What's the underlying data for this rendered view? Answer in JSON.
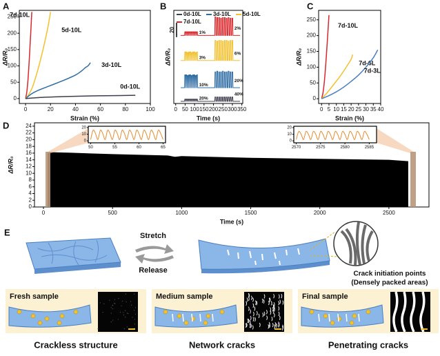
{
  "chart_data": [
    {
      "type": "line",
      "label": "A",
      "xlabel": "Strain (%)",
      "ylabel": "ΔR/R₀",
      "xlim": [
        -5,
        100
      ],
      "ylim": [
        -15,
        270
      ],
      "xticks": [
        0,
        20,
        40,
        60,
        80,
        100
      ],
      "yticks": [
        0,
        50,
        100,
        150,
        200,
        250
      ],
      "series": [
        {
          "name": "7d-10L",
          "color": "#d9262a",
          "x": [
            0,
            1,
            2,
            3,
            4,
            5
          ],
          "values": [
            0,
            20,
            60,
            120,
            190,
            265
          ]
        },
        {
          "name": "5d-10L",
          "color": "#f2c12e",
          "x": [
            0,
            3,
            6,
            10,
            14,
            18,
            20
          ],
          "values": [
            0,
            15,
            40,
            90,
            150,
            220,
            265
          ]
        },
        {
          "name": "3d-10L",
          "color": "#2e6da4",
          "x": [
            0,
            5,
            10,
            20,
            30,
            40,
            45,
            48,
            50,
            52
          ],
          "values": [
            0,
            15,
            25,
            40,
            55,
            72,
            85,
            95,
            100,
            110
          ]
        },
        {
          "name": "0d-10L",
          "color": "#3d3d4d",
          "x": [
            0,
            10,
            30,
            50,
            70,
            88
          ],
          "values": [
            0,
            3,
            6,
            8,
            9,
            10
          ]
        }
      ]
    },
    {
      "type": "pulse",
      "label": "B",
      "xlabel": "Time (s)",
      "ylabel": "ΔR/R₀",
      "xlim": [
        -10,
        355
      ],
      "ylim": [
        0,
        130
      ],
      "xticks": [
        0,
        50,
        100,
        150,
        200,
        250,
        300,
        350
      ],
      "scale_bar": 20,
      "x": [
        50,
        57,
        64,
        71,
        78,
        85,
        92,
        99,
        106,
        113,
        210,
        220,
        230,
        240,
        250,
        260,
        270,
        280,
        290,
        300
      ],
      "series": [
        {
          "name": "0d-10L",
          "color": "#3d3d4d",
          "strain_labels": [
            "20%",
            "40%"
          ],
          "values": [
            3,
            3,
            3,
            3,
            3,
            3,
            3,
            3,
            3,
            3,
            6,
            6,
            6,
            6,
            6,
            6,
            6,
            6,
            6,
            6
          ]
        },
        {
          "name": "3d-10L",
          "color": "#2e6da4",
          "strain_labels": [
            "10%",
            "20%"
          ],
          "values": [
            18,
            18,
            17,
            18,
            18,
            17,
            18,
            18,
            17,
            18,
            22,
            23,
            22,
            22,
            23,
            22,
            22,
            23,
            22,
            22
          ]
        },
        {
          "name": "5d-10L",
          "color": "#f2c12e",
          "strain_labels": [
            "3%",
            "6%"
          ],
          "values": [
            12,
            12,
            11,
            12,
            12,
            11,
            12,
            12,
            11,
            12,
            28,
            27,
            28,
            28,
            27,
            28,
            28,
            27,
            28,
            28
          ]
        },
        {
          "name": "7d-10L",
          "color": "#d9262a",
          "strain_labels": [
            "1%",
            "2%"
          ],
          "values": [
            5,
            5,
            5,
            5,
            5,
            5,
            5,
            5,
            5,
            5,
            26,
            25,
            25,
            24,
            25,
            25,
            24,
            25,
            24,
            24
          ]
        }
      ]
    },
    {
      "type": "line",
      "label": "C",
      "xlabel": "Strain (%)",
      "ylabel": "ΔR/R₀",
      "xlim": [
        -2,
        40
      ],
      "ylim": [
        -15,
        280
      ],
      "xticks": [
        0,
        5,
        10,
        15,
        20,
        25,
        30,
        35,
        40
      ],
      "yticks": [
        0,
        50,
        100,
        150,
        200,
        250
      ],
      "series": [
        {
          "name": "7d-10L",
          "color": "#d9262a",
          "x": [
            0,
            1,
            2,
            3,
            4,
            5
          ],
          "values": [
            0,
            20,
            60,
            120,
            190,
            265
          ]
        },
        {
          "name": "7d-6L",
          "color": "#f2c12e",
          "x": [
            0,
            3,
            6,
            9,
            12,
            15,
            18,
            20,
            21
          ],
          "values": [
            0,
            15,
            32,
            50,
            68,
            88,
            110,
            125,
            140
          ]
        },
        {
          "name": "7d-3L",
          "color": "#4a7fc0",
          "x": [
            0,
            5,
            10,
            15,
            20,
            25,
            30,
            35,
            38
          ],
          "values": [
            0,
            10,
            22,
            37,
            55,
            75,
            100,
            130,
            155
          ]
        }
      ]
    },
    {
      "type": "area",
      "label": "D",
      "xlabel": "Time (s)",
      "ylabel": "ΔR/R₀",
      "xlim": [
        -65,
        2790
      ],
      "ylim": [
        0,
        25
      ],
      "xticks": [
        0,
        500,
        1000,
        1500,
        2000,
        2500
      ],
      "yticks": [
        0,
        2,
        4,
        6,
        8,
        10,
        12,
        14,
        16,
        18,
        20,
        22,
        24
      ],
      "series": [
        {
          "color": "#000000",
          "x": [
            30,
            200,
            500,
            900,
            950,
            1000,
            1500,
            2000,
            2500,
            2640
          ],
          "values": [
            16.3,
            16.1,
            15.7,
            15.3,
            14.9,
            15.1,
            14.6,
            14.3,
            14.0,
            13.6
          ]
        }
      ]
    },
    {
      "type": "line",
      "xlim": [
        49.5,
        65.5
      ],
      "ylim": [
        -3,
        22
      ],
      "xticks": [
        50,
        55,
        60,
        65
      ],
      "yticks": [
        0,
        10,
        20
      ],
      "series": [
        {
          "color": "#e8892b",
          "x": [
            50,
            50.5,
            51,
            51.5,
            52,
            52.5,
            53,
            53.5,
            54,
            54.5,
            55,
            55.5,
            56,
            56.5,
            57,
            57.5,
            58,
            58.5,
            59,
            59.5,
            60,
            60.5,
            61,
            61.5,
            62,
            62.5,
            63,
            63.5,
            64,
            64.5,
            65
          ],
          "values": [
            2,
            16,
            11,
            2,
            16,
            11,
            2,
            16,
            11,
            2,
            16,
            11,
            2,
            16,
            11,
            2,
            16,
            11,
            2,
            16,
            11,
            2,
            16,
            11,
            2,
            16,
            11,
            2,
            16,
            11,
            2
          ]
        }
      ]
    },
    {
      "type": "line",
      "xlim": [
        2569.5,
        2586.5
      ],
      "ylim": [
        -3,
        22
      ],
      "xticks": [
        2570,
        2575,
        2580,
        2585
      ],
      "yticks": [
        0,
        10,
        20
      ],
      "series": [
        {
          "color": "#e8892b",
          "x": [
            2570,
            2570.5,
            2571,
            2571.5,
            2572,
            2572.5,
            2573,
            2573.5,
            2574,
            2574.5,
            2575,
            2575.5,
            2576,
            2576.5,
            2577,
            2577.5,
            2578,
            2578.5,
            2579,
            2579.5,
            2580,
            2580.5,
            2581,
            2581.5,
            2582,
            2582.5,
            2583,
            2583.5,
            2584,
            2584.5,
            2585
          ],
          "values": [
            2,
            14,
            10,
            2,
            14,
            10,
            2,
            14,
            10,
            2,
            14,
            10,
            2,
            14,
            10,
            2,
            14,
            10,
            2,
            14,
            10,
            2,
            14,
            10,
            2,
            14,
            10,
            2,
            14,
            10,
            2
          ]
        }
      ]
    }
  ],
  "panel_e": {
    "label": "E",
    "stretch": "Stretch",
    "release": "Release",
    "crack_title": "Crack initiation points",
    "crack_note": "(Densely packed areas)",
    "samples": [
      {
        "title": "Fresh sample",
        "caption": "Crackless structure"
      },
      {
        "title": "Medium sample",
        "caption": "Network cracks"
      },
      {
        "title": "Final sample",
        "caption": "Penetrating cracks"
      }
    ]
  }
}
